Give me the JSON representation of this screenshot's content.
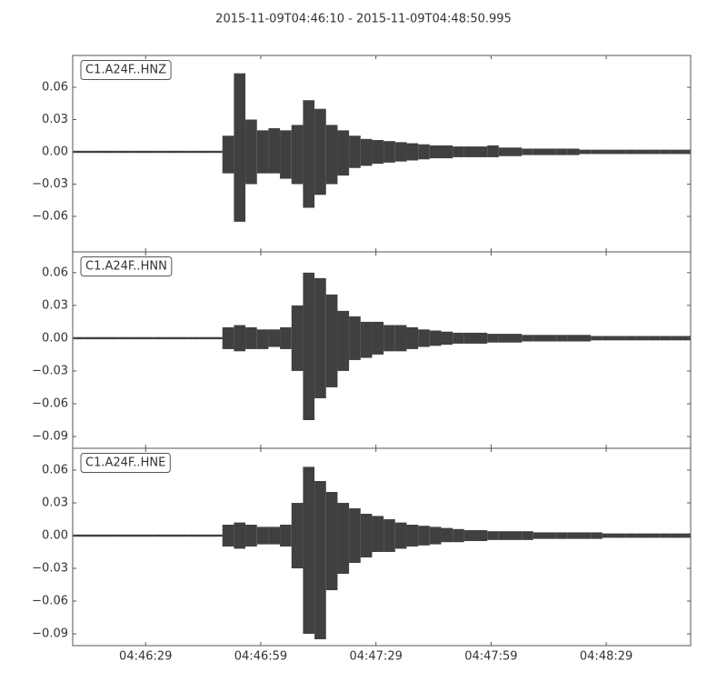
{
  "chart_data": [
    {
      "type": "waveform",
      "title": "2015-11-09T04:46:10  -  2015-11-09T04:48:50.995",
      "label": "C1.A24F..HNZ",
      "color": "#404040",
      "xlim": [
        "2015-11-09T04:46:10",
        "2015-11-09T04:48:50.995"
      ],
      "ylim": [
        -0.093,
        0.0896
      ],
      "yticks": [
        {
          "value": -0.06,
          "label": "−0.06"
        },
        {
          "value": -0.03,
          "label": "−0.03"
        },
        {
          "value": 0,
          "label": "0.00"
        },
        {
          "value": 0.03,
          "label": "0.03"
        },
        {
          "value": 0.06,
          "label": "0.06"
        }
      ],
      "x": [
        "04:46:10",
        "04:46:13",
        "04:46:16",
        "04:46:19",
        "04:46:22",
        "04:46:25",
        "04:46:28",
        "04:46:31",
        "04:46:34",
        "04:46:37",
        "04:46:40",
        "04:46:43",
        "04:46:46",
        "04:46:49",
        "04:46:52",
        "04:46:55",
        "04:46:58",
        "04:47:01",
        "04:47:04",
        "04:47:07",
        "04:47:10",
        "04:47:13",
        "04:47:16",
        "04:47:19",
        "04:47:22",
        "04:47:25",
        "04:47:28",
        "04:47:31",
        "04:47:34",
        "04:47:37",
        "04:47:40",
        "04:47:43",
        "04:47:46",
        "04:47:49",
        "04:47:52",
        "04:47:55",
        "04:47:58",
        "04:48:01",
        "04:48:04",
        "04:48:07",
        "04:48:10",
        "04:48:13",
        "04:48:16",
        "04:48:19",
        "04:48:22",
        "04:48:25",
        "04:48:28",
        "04:48:31",
        "04:48:34",
        "04:48:37",
        "04:48:40",
        "04:48:43",
        "04:48:46",
        "04:48:49"
      ],
      "upper": [
        0.001,
        0.001,
        0.001,
        0.001,
        0.001,
        0.001,
        0.001,
        0.001,
        0.001,
        0.001,
        0.001,
        0.001,
        0.001,
        0.015,
        0.073,
        0.03,
        0.02,
        0.022,
        0.02,
        0.025,
        0.048,
        0.04,
        0.025,
        0.02,
        0.015,
        0.012,
        0.011,
        0.01,
        0.009,
        0.008,
        0.007,
        0.006,
        0.006,
        0.005,
        0.005,
        0.005,
        0.006,
        0.004,
        0.004,
        0.003,
        0.003,
        0.003,
        0.003,
        0.003,
        0.002,
        0.002,
        0.002,
        0.002,
        0.002,
        0.002,
        0.002,
        0.002,
        0.002,
        0.002
      ],
      "lower": [
        -0.001,
        -0.001,
        -0.001,
        -0.001,
        -0.001,
        -0.001,
        -0.001,
        -0.001,
        -0.001,
        -0.001,
        -0.001,
        -0.001,
        -0.001,
        -0.02,
        -0.065,
        -0.03,
        -0.02,
        -0.02,
        -0.025,
        -0.03,
        -0.052,
        -0.04,
        -0.03,
        -0.022,
        -0.015,
        -0.013,
        -0.011,
        -0.01,
        -0.009,
        -0.008,
        -0.007,
        -0.006,
        -0.006,
        -0.005,
        -0.005,
        -0.005,
        -0.005,
        -0.004,
        -0.004,
        -0.003,
        -0.003,
        -0.003,
        -0.003,
        -0.003,
        -0.002,
        -0.002,
        -0.002,
        -0.002,
        -0.002,
        -0.002,
        -0.002,
        -0.002,
        -0.002,
        -0.002
      ]
    },
    {
      "type": "waveform",
      "label": "C1.A24F..HNN",
      "color": "#404040",
      "xlim": [
        "2015-11-09T04:46:10",
        "2015-11-09T04:48:50.995"
      ],
      "ylim": [
        -0.1008,
        0.079
      ],
      "yticks": [
        {
          "value": -0.09,
          "label": "−0.09"
        },
        {
          "value": -0.06,
          "label": "−0.06"
        },
        {
          "value": -0.03,
          "label": "−0.03"
        },
        {
          "value": 0,
          "label": "0.00"
        },
        {
          "value": 0.03,
          "label": "0.03"
        },
        {
          "value": 0.06,
          "label": "0.06"
        }
      ],
      "x": [
        "04:46:10",
        "04:46:13",
        "04:46:16",
        "04:46:19",
        "04:46:22",
        "04:46:25",
        "04:46:28",
        "04:46:31",
        "04:46:34",
        "04:46:37",
        "04:46:40",
        "04:46:43",
        "04:46:46",
        "04:46:49",
        "04:46:52",
        "04:46:55",
        "04:46:58",
        "04:47:01",
        "04:47:04",
        "04:47:07",
        "04:47:10",
        "04:47:13",
        "04:47:16",
        "04:47:19",
        "04:47:22",
        "04:47:25",
        "04:47:28",
        "04:47:31",
        "04:47:34",
        "04:47:37",
        "04:47:40",
        "04:47:43",
        "04:47:46",
        "04:47:49",
        "04:47:52",
        "04:47:55",
        "04:47:58",
        "04:48:01",
        "04:48:04",
        "04:48:07",
        "04:48:10",
        "04:48:13",
        "04:48:16",
        "04:48:19",
        "04:48:22",
        "04:48:25",
        "04:48:28",
        "04:48:31",
        "04:48:34",
        "04:48:37",
        "04:48:40",
        "04:48:43",
        "04:48:46",
        "04:48:49"
      ],
      "upper": [
        0.001,
        0.001,
        0.001,
        0.001,
        0.001,
        0.001,
        0.001,
        0.001,
        0.001,
        0.001,
        0.001,
        0.001,
        0.001,
        0.01,
        0.012,
        0.01,
        0.008,
        0.008,
        0.01,
        0.03,
        0.06,
        0.055,
        0.04,
        0.025,
        0.02,
        0.015,
        0.015,
        0.012,
        0.012,
        0.01,
        0.008,
        0.007,
        0.006,
        0.005,
        0.005,
        0.005,
        0.004,
        0.004,
        0.004,
        0.003,
        0.003,
        0.003,
        0.003,
        0.003,
        0.003,
        0.002,
        0.002,
        0.002,
        0.002,
        0.002,
        0.002,
        0.002,
        0.002,
        0.002
      ],
      "lower": [
        -0.001,
        -0.001,
        -0.001,
        -0.001,
        -0.001,
        -0.001,
        -0.001,
        -0.001,
        -0.001,
        -0.001,
        -0.001,
        -0.001,
        -0.001,
        -0.01,
        -0.012,
        -0.01,
        -0.01,
        -0.008,
        -0.01,
        -0.03,
        -0.075,
        -0.055,
        -0.045,
        -0.03,
        -0.02,
        -0.018,
        -0.015,
        -0.012,
        -0.012,
        -0.01,
        -0.008,
        -0.007,
        -0.006,
        -0.005,
        -0.005,
        -0.005,
        -0.004,
        -0.004,
        -0.004,
        -0.003,
        -0.003,
        -0.003,
        -0.003,
        -0.003,
        -0.003,
        -0.002,
        -0.002,
        -0.002,
        -0.002,
        -0.002,
        -0.002,
        -0.002,
        -0.002,
        -0.002
      ]
    },
    {
      "type": "waveform",
      "label": "C1.A24F..HNE",
      "color": "#404040",
      "xlim": [
        "2015-11-09T04:46:10",
        "2015-11-09T04:48:50.995"
      ],
      "ylim": [
        -0.1008,
        0.08
      ],
      "yticks": [
        {
          "value": -0.09,
          "label": "−0.09"
        },
        {
          "value": -0.06,
          "label": "−0.06"
        },
        {
          "value": -0.03,
          "label": "−0.03"
        },
        {
          "value": 0,
          "label": "0.00"
        },
        {
          "value": 0.03,
          "label": "0.03"
        },
        {
          "value": 0.06,
          "label": "0.06"
        }
      ],
      "xticks": [
        "04:46:29",
        "04:46:59",
        "04:47:29",
        "04:47:59",
        "04:48:29"
      ],
      "x": [
        "04:46:10",
        "04:46:13",
        "04:46:16",
        "04:46:19",
        "04:46:22",
        "04:46:25",
        "04:46:28",
        "04:46:31",
        "04:46:34",
        "04:46:37",
        "04:46:40",
        "04:46:43",
        "04:46:46",
        "04:46:49",
        "04:46:52",
        "04:46:55",
        "04:46:58",
        "04:47:01",
        "04:47:04",
        "04:47:07",
        "04:47:10",
        "04:47:13",
        "04:47:16",
        "04:47:19",
        "04:47:22",
        "04:47:25",
        "04:47:28",
        "04:47:31",
        "04:47:34",
        "04:47:37",
        "04:47:40",
        "04:47:43",
        "04:47:46",
        "04:47:49",
        "04:47:52",
        "04:47:55",
        "04:47:58",
        "04:48:01",
        "04:48:04",
        "04:48:07",
        "04:48:10",
        "04:48:13",
        "04:48:16",
        "04:48:19",
        "04:48:22",
        "04:48:25",
        "04:48:28",
        "04:48:31",
        "04:48:34",
        "04:48:37",
        "04:48:40",
        "04:48:43",
        "04:48:46",
        "04:48:49"
      ],
      "upper": [
        0.001,
        0.001,
        0.001,
        0.001,
        0.001,
        0.001,
        0.001,
        0.001,
        0.001,
        0.001,
        0.001,
        0.001,
        0.001,
        0.01,
        0.012,
        0.01,
        0.008,
        0.008,
        0.01,
        0.03,
        0.063,
        0.05,
        0.04,
        0.03,
        0.025,
        0.02,
        0.018,
        0.015,
        0.012,
        0.01,
        0.009,
        0.008,
        0.007,
        0.006,
        0.005,
        0.005,
        0.004,
        0.004,
        0.004,
        0.004,
        0.003,
        0.003,
        0.003,
        0.003,
        0.003,
        0.003,
        0.002,
        0.002,
        0.002,
        0.002,
        0.002,
        0.002,
        0.002,
        0.002
      ],
      "lower": [
        -0.001,
        -0.001,
        -0.001,
        -0.001,
        -0.001,
        -0.001,
        -0.001,
        -0.001,
        -0.001,
        -0.001,
        -0.001,
        -0.001,
        -0.001,
        -0.01,
        -0.012,
        -0.01,
        -0.008,
        -0.008,
        -0.01,
        -0.03,
        -0.09,
        -0.095,
        -0.05,
        -0.035,
        -0.025,
        -0.02,
        -0.015,
        -0.015,
        -0.012,
        -0.01,
        -0.009,
        -0.008,
        -0.006,
        -0.006,
        -0.005,
        -0.005,
        -0.004,
        -0.004,
        -0.004,
        -0.004,
        -0.003,
        -0.003,
        -0.003,
        -0.003,
        -0.003,
        -0.003,
        -0.002,
        -0.002,
        -0.002,
        -0.002,
        -0.002,
        -0.002,
        -0.002,
        -0.002
      ]
    }
  ]
}
